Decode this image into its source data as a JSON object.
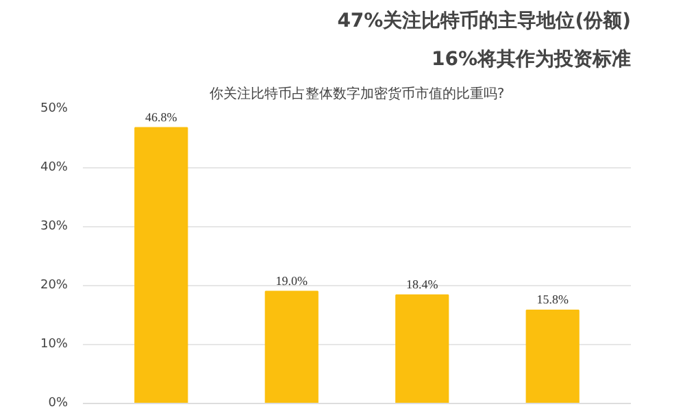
{
  "chart_data": {
    "type": "bar",
    "title": "47%关注比特币的主导地位(份额)",
    "subtitle": "16%将其作为投资标准",
    "annotations": [
      "你关注比特币占整体数字加密货币市值的比重吗?"
    ],
    "categories": [
      null,
      null,
      null,
      null
    ],
    "values": [
      46.8,
      19.0,
      18.4,
      15.8
    ],
    "value_labels": [
      "46.8%",
      "19.0%",
      "18.4%",
      "15.8%"
    ],
    "color": "#fbbf0e",
    "ylim": [
      0,
      50
    ],
    "yticks": [
      {
        "value": 0,
        "label": "0%"
      },
      {
        "value": 10,
        "label": "10%"
      },
      {
        "value": 20,
        "label": "20%"
      },
      {
        "value": 30,
        "label": "30%"
      },
      {
        "value": 40,
        "label": "40%"
      },
      {
        "value": 50,
        "label": "50%"
      }
    ],
    "grid": "y"
  }
}
